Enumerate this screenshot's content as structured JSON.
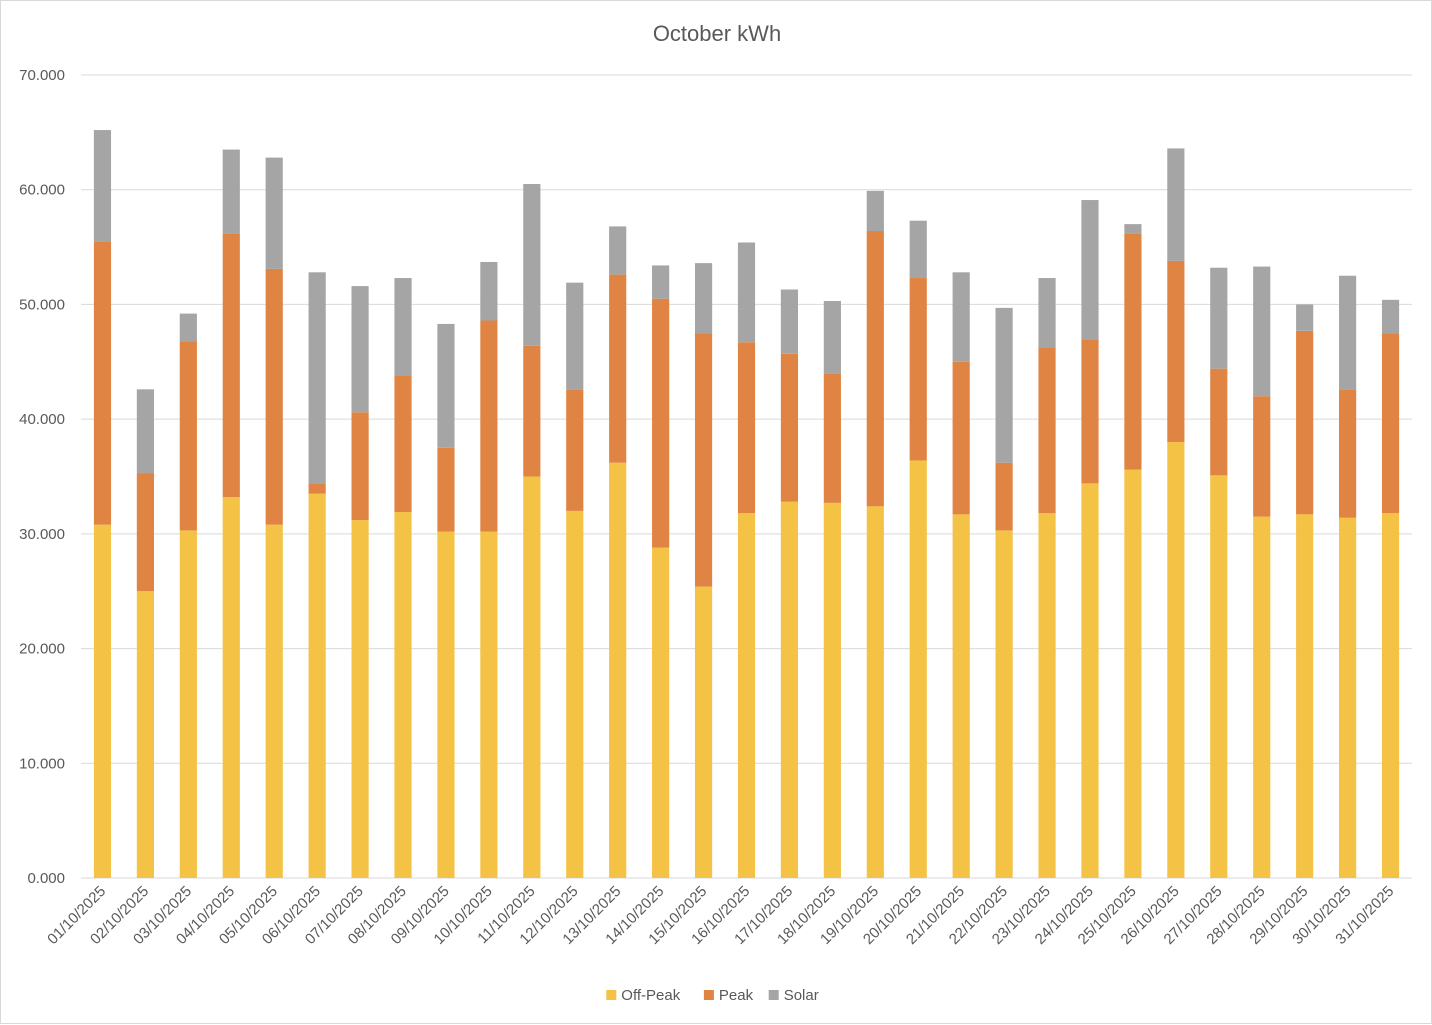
{
  "chart_data": {
    "type": "bar",
    "stacked": true,
    "title": "October kWh",
    "xlabel": "",
    "ylabel": "",
    "ylim": [
      0,
      70
    ],
    "ytick_values": [
      0,
      10,
      20,
      30,
      40,
      50,
      60,
      70
    ],
    "ytick_labels": [
      "0.000",
      "10.000",
      "20.000",
      "30.000",
      "40.000",
      "50.000",
      "60.000",
      "70.000"
    ],
    "grid": true,
    "legend_position": "bottom",
    "categories": [
      "01/10/2025",
      "02/10/2025",
      "03/10/2025",
      "04/10/2025",
      "05/10/2025",
      "06/10/2025",
      "07/10/2025",
      "08/10/2025",
      "09/10/2025",
      "10/10/2025",
      "11/10/2025",
      "12/10/2025",
      "13/10/2025",
      "14/10/2025",
      "15/10/2025",
      "16/10/2025",
      "17/10/2025",
      "18/10/2025",
      "19/10/2025",
      "20/10/2025",
      "21/10/2025",
      "22/10/2025",
      "23/10/2025",
      "24/10/2025",
      "25/10/2025",
      "26/10/2025",
      "27/10/2025",
      "28/10/2025",
      "29/10/2025",
      "30/10/2025",
      "31/10/2025"
    ],
    "series": [
      {
        "name": "Off-Peak",
        "color": "#F4C245",
        "values": [
          30.8,
          25.0,
          30.3,
          33.2,
          30.8,
          33.5,
          31.2,
          31.9,
          30.2,
          30.2,
          35.0,
          32.0,
          36.2,
          28.8,
          25.4,
          31.8,
          32.8,
          32.7,
          32.4,
          36.4,
          31.7,
          30.3,
          31.8,
          34.4,
          35.6,
          38.0,
          35.1,
          31.5,
          31.7,
          31.4,
          31.8
        ]
      },
      {
        "name": "Peak",
        "color": "#E08443",
        "values": [
          24.7,
          10.3,
          16.5,
          23.0,
          22.3,
          0.9,
          9.4,
          11.9,
          7.3,
          18.4,
          11.4,
          10.6,
          16.4,
          21.7,
          22.1,
          14.9,
          12.9,
          11.3,
          24.0,
          15.9,
          13.3,
          5.9,
          14.4,
          12.5,
          20.6,
          15.8,
          9.3,
          10.5,
          16.0,
          11.2,
          15.7
        ]
      },
      {
        "name": "Solar",
        "color": "#A5A5A5",
        "values": [
          9.7,
          7.3,
          2.4,
          7.3,
          9.7,
          18.4,
          11.0,
          8.5,
          10.8,
          5.1,
          14.1,
          9.3,
          4.2,
          2.9,
          6.1,
          8.7,
          5.6,
          6.3,
          3.5,
          5.0,
          7.8,
          13.5,
          6.1,
          12.2,
          0.8,
          9.8,
          8.8,
          11.3,
          2.3,
          9.9,
          2.9
        ]
      }
    ]
  }
}
